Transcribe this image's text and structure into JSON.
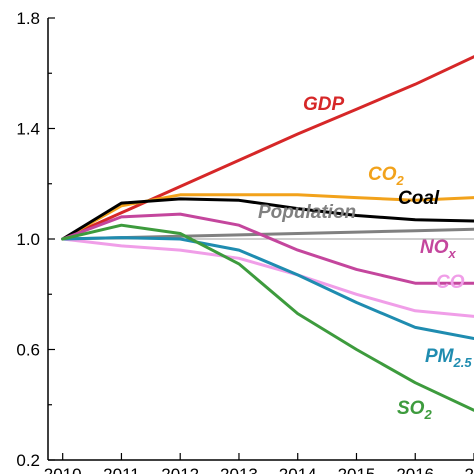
{
  "chart_data": {
    "type": "line",
    "x": [
      2010,
      2011,
      2012,
      2013,
      2014,
      2015,
      2016,
      2017
    ],
    "xlim": [
      2009.75,
      2017.0
    ],
    "ylim": [
      0.2,
      1.8
    ],
    "y_ticks": [
      "0.2",
      "0.6",
      "1.0",
      "1.4",
      "1.8"
    ],
    "x_ticks": [
      "2010",
      "2011",
      "2012",
      "2013",
      "2014",
      "2015",
      "2016",
      "20"
    ],
    "reference_line": 1.0,
    "legend": "inline labels",
    "series": [
      {
        "name": "GDP",
        "color": "#d62728",
        "values": [
          1.0,
          1.095,
          1.19,
          1.285,
          1.38,
          1.47,
          1.56,
          1.66
        ]
      },
      {
        "name": "CO2",
        "color": "#f2a21b",
        "values": [
          1.0,
          1.12,
          1.16,
          1.16,
          1.16,
          1.15,
          1.14,
          1.15
        ]
      },
      {
        "name": "Coal",
        "color": "#000000",
        "values": [
          1.0,
          1.13,
          1.145,
          1.14,
          1.11,
          1.085,
          1.07,
          1.065
        ]
      },
      {
        "name": "Population",
        "color": "#808080",
        "values": [
          1.0,
          1.005,
          1.01,
          1.015,
          1.02,
          1.025,
          1.03,
          1.035
        ]
      },
      {
        "name": "NOx",
        "color": "#c4469d",
        "values": [
          1.0,
          1.08,
          1.09,
          1.05,
          0.96,
          0.89,
          0.84,
          0.84
        ]
      },
      {
        "name": "CO",
        "color": "#f09ee8",
        "values": [
          1.0,
          0.975,
          0.96,
          0.93,
          0.87,
          0.8,
          0.74,
          0.72
        ]
      },
      {
        "name": "PM2.5",
        "color": "#1f8cb0",
        "values": [
          1.0,
          1.005,
          1.0,
          0.96,
          0.87,
          0.77,
          0.68,
          0.64
        ]
      },
      {
        "name": "SO2",
        "color": "#3d9b3d",
        "values": [
          1.0,
          1.05,
          1.02,
          0.91,
          0.73,
          0.6,
          0.48,
          0.38
        ]
      }
    ],
    "labels": {
      "GDP": {
        "main": "GDP",
        "sub": ""
      },
      "CO2": {
        "main": "CO",
        "sub": "2"
      },
      "Coal": {
        "main": "Coal",
        "sub": ""
      },
      "Population": {
        "main": "Population",
        "sub": ""
      },
      "NOx": {
        "main": "NO",
        "sub": "x"
      },
      "CO": {
        "main": "CO",
        "sub": ""
      },
      "PM2.5": {
        "main": "PM",
        "sub": "2.5"
      },
      "SO2": {
        "main": "SO",
        "sub": "2"
      }
    }
  }
}
